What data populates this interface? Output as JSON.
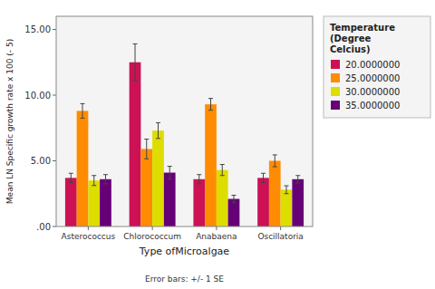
{
  "chart_data": {
    "type": "bar",
    "xlabel": "Type ofMicroalgae",
    "ylabel": "Mean LN Specific growth rate x 100 (- 5)",
    "categories": [
      "Asterococcus",
      "Chlorococcum",
      "Anabaena",
      "Oscillatoria"
    ],
    "legend_title": "Temperature\n(Degree\nCelcius)",
    "series": [
      {
        "name": "20.0000000",
        "color": "#CC1155",
        "values": [
          3.7,
          12.5,
          3.6,
          3.7
        ],
        "errors": [
          0.35,
          1.4,
          0.35,
          0.35
        ]
      },
      {
        "name": "25.0000000",
        "color": "#FF8C00",
        "values": [
          8.8,
          5.9,
          9.3,
          5.0
        ],
        "errors": [
          0.55,
          0.75,
          0.45,
          0.45
        ]
      },
      {
        "name": "30.0000000",
        "color": "#DDDD00",
        "values": [
          3.5,
          7.3,
          4.3,
          2.8
        ],
        "errors": [
          0.38,
          0.6,
          0.42,
          0.3
        ]
      },
      {
        "name": "35.0000000",
        "color": "#660077",
        "values": [
          3.6,
          4.1,
          2.1,
          3.6
        ],
        "errors": [
          0.35,
          0.48,
          0.28,
          0.28
        ]
      }
    ],
    "ylim": [
      0,
      16.0
    ],
    "yticks": [
      {
        "value": 0.0,
        "label": ".00"
      },
      {
        "value": 5.0,
        "label": "5.00"
      },
      {
        "value": 10.0,
        "label": "10.00"
      },
      {
        "value": 15.0,
        "label": "15.00"
      }
    ],
    "annotations": [
      "Error bars: +/- 1 SE"
    ],
    "grid": false,
    "legend": "right"
  }
}
